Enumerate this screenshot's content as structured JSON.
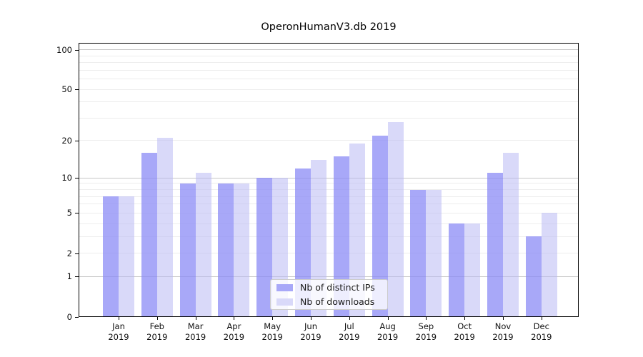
{
  "title": "OperonHumanV3.db 2019",
  "chart_data": {
    "type": "bar",
    "categories": [
      "Jan",
      "Feb",
      "Mar",
      "Apr",
      "May",
      "Jun",
      "Jul",
      "Aug",
      "Sep",
      "Oct",
      "Nov",
      "Dec"
    ],
    "x_year": "2019",
    "series": [
      {
        "name": "Nb of distinct IPs",
        "color_hex": "#a8a8f8",
        "fill": "rgba(139,139,246,0.75)",
        "values": [
          7,
          16,
          9,
          9,
          10,
          12,
          15,
          22,
          8,
          4,
          11,
          3
        ]
      },
      {
        "name": "Nb of downloads",
        "color_hex": "#d9d9f9",
        "fill": "rgba(186,186,244,0.55)",
        "values": [
          7,
          21,
          11,
          9,
          10,
          14,
          19,
          28,
          8,
          4,
          16,
          5
        ]
      }
    ],
    "yscale": "log1p",
    "y_tick_labels": [
      "0",
      "1",
      "2",
      "5",
      "10",
      "20",
      "50",
      "100"
    ],
    "y_ticks": [
      0,
      1,
      2,
      5,
      10,
      20,
      50,
      100
    ],
    "y_major_gridlines": [
      1,
      10,
      100
    ],
    "y_minor_gridlines": [
      2,
      3,
      4,
      5,
      6,
      7,
      8,
      9,
      20,
      30,
      40,
      50,
      60,
      70,
      80,
      90
    ],
    "ylim": [
      0,
      112
    ],
    "grid": true,
    "legend_position": "lower center-right"
  },
  "legend": {
    "items": [
      {
        "label": "Nb of distinct IPs"
      },
      {
        "label": "Nb of downloads"
      }
    ]
  },
  "colors": {
    "background": "#ffffff",
    "axis": "#000000",
    "grid_major": "#c6c6c6",
    "grid_minor": "#ededed",
    "legend_border": "#cccccc",
    "bar_distinct_ips": "#a8a8f8",
    "bar_downloads": "#d9d9f9"
  }
}
